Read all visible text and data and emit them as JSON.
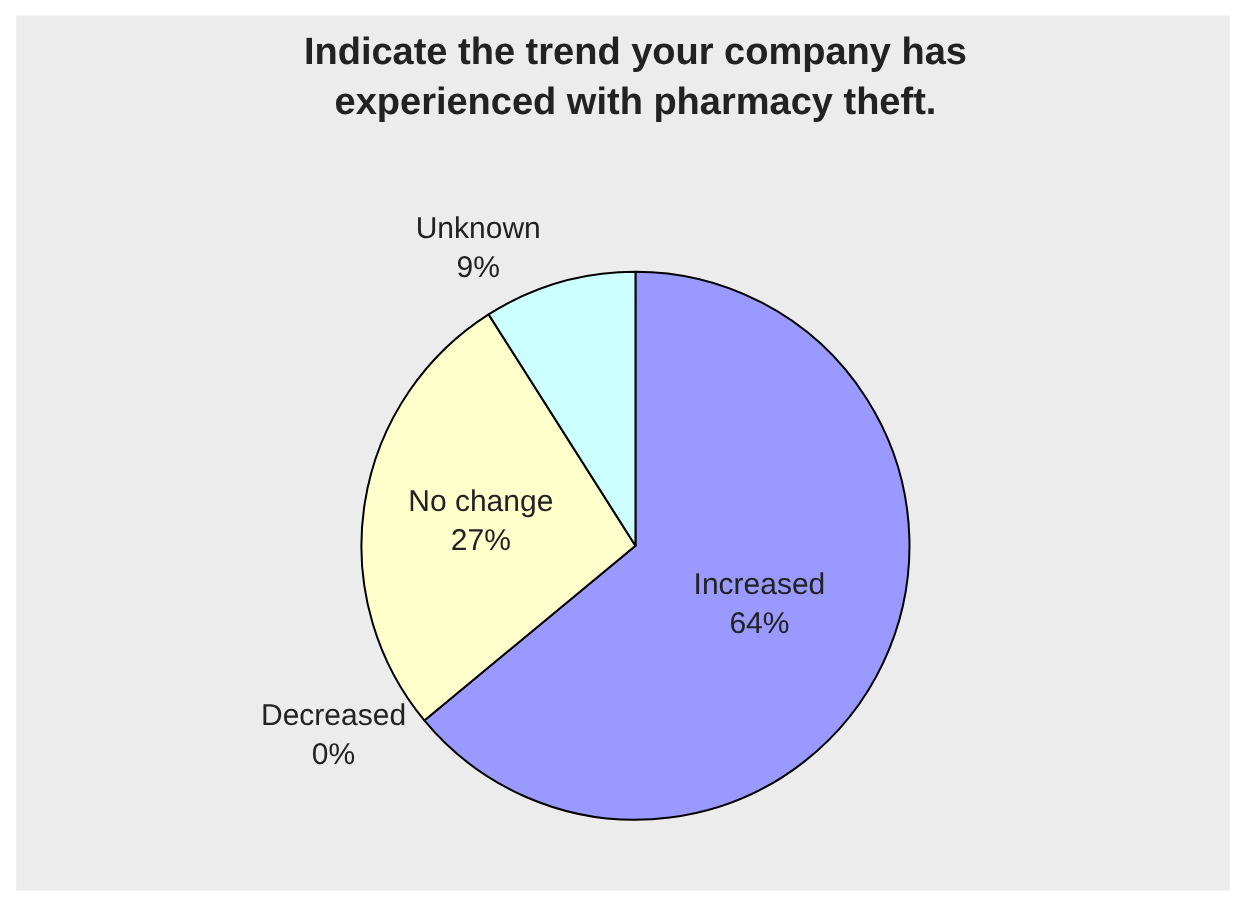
{
  "chart_data": {
    "type": "pie",
    "title": "Indicate the trend your company has experienced with pharmacy theft.",
    "categories": [
      "Increased",
      "Decreased",
      "No change",
      "Unknown"
    ],
    "values": [
      64,
      0,
      27,
      9
    ],
    "value_labels": [
      "64%",
      "0%",
      "27%",
      "9%"
    ],
    "colors": [
      "#9999ff",
      "#993366",
      "#ffffcc",
      "#ccffff"
    ],
    "legend": false
  }
}
